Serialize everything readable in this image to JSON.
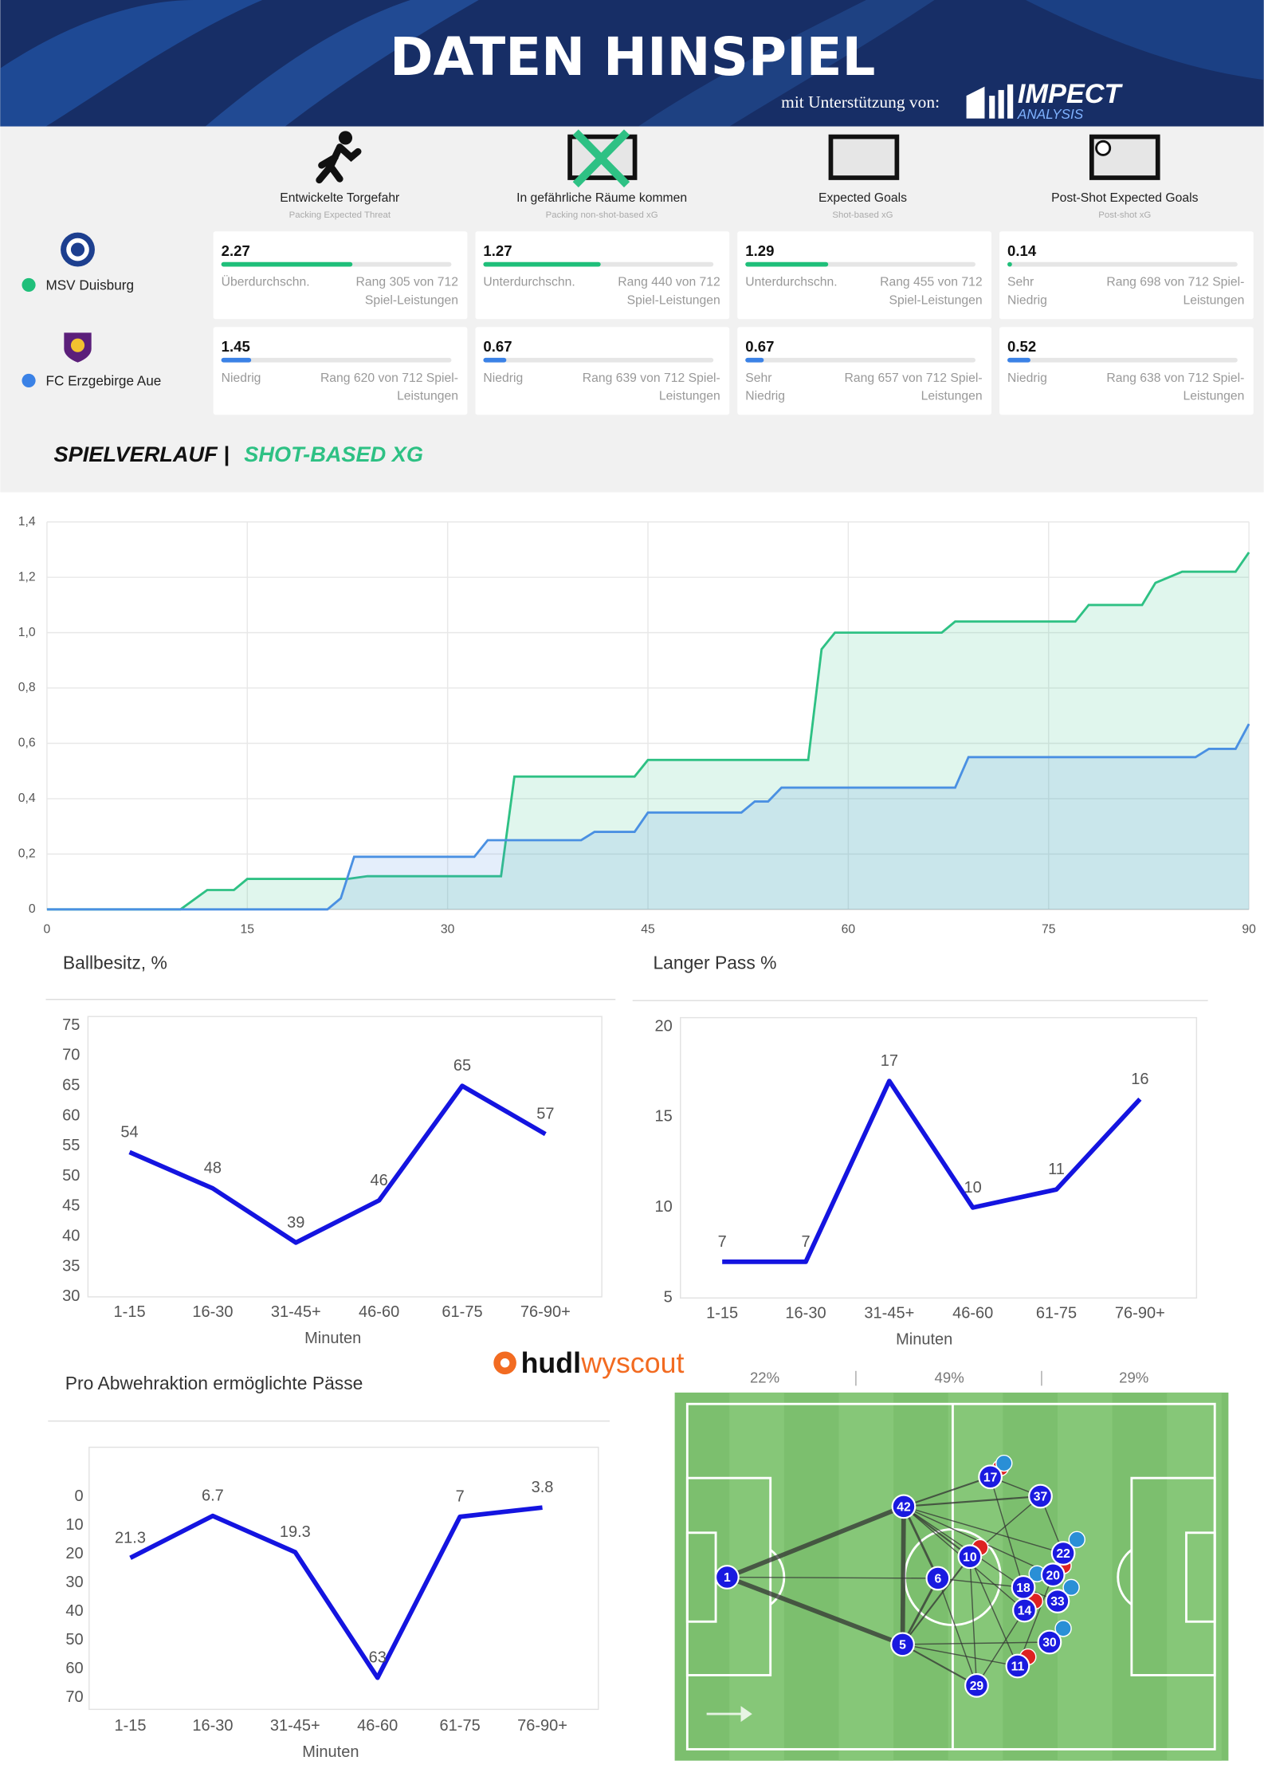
{
  "header": {
    "title": "DATEN HINSPIEL",
    "support": "mit Unterstützung von:",
    "sponsor": "IMPECT",
    "sponsor_sub": "ANALYSIS"
  },
  "metrics": {
    "columns": [
      {
        "title": "Entwickelte Torgefahr",
        "subtitle": "Packing Expected Threat"
      },
      {
        "title": "In gefährliche Räume kommen",
        "subtitle": "Packing non-shot-based xG"
      },
      {
        "title": "Expected Goals",
        "subtitle": "Shot-based xG"
      },
      {
        "title": "Post-Shot Expected Goals",
        "subtitle": "Post-shot xG"
      }
    ],
    "teams": [
      {
        "name": "MSV Duisburg",
        "color": "#1fbf7a",
        "cards": [
          {
            "value": 2.27,
            "bar": 0.57,
            "label": [
              "Überdurchschn."
            ],
            "rank": [
              "Rang 305 von 712",
              "Spiel-Leistungen"
            ]
          },
          {
            "value": 1.27,
            "bar": 0.51,
            "label": [
              "Unterdurchschn."
            ],
            "rank": [
              "Rang 440 von 712",
              "Spiel-Leistungen"
            ]
          },
          {
            "value": 1.29,
            "bar": 0.36,
            "label": [
              "Unterdurchschn."
            ],
            "rank": [
              "Rang 455 von 712",
              "Spiel-Leistungen"
            ]
          },
          {
            "value": 0.14,
            "bar": 0.02,
            "label": [
              "Sehr",
              "Niedrig"
            ],
            "rank": [
              "Rang 698 von 712 Spiel-",
              "Leistungen"
            ]
          }
        ]
      },
      {
        "name": "FC Erzgebirge Aue",
        "color": "#3b82e6",
        "cards": [
          {
            "value": 1.45,
            "bar": 0.13,
            "label": [
              "Niedrig"
            ],
            "rank": [
              "Rang 620 von 712 Spiel-",
              "Leistungen"
            ]
          },
          {
            "value": 0.67,
            "bar": 0.1,
            "label": [
              "Niedrig"
            ],
            "rank": [
              "Rang 639 von 712 Spiel-",
              "Leistungen"
            ]
          },
          {
            "value": 0.67,
            "bar": 0.08,
            "label": [
              "Sehr",
              "Niedrig"
            ],
            "rank": [
              "Rang 657 von 712 Spiel-",
              "Leistungen"
            ]
          },
          {
            "value": 0.52,
            "bar": 0.1,
            "label": [
              "Niedrig"
            ],
            "rank": [
              "Rang 638 von 712 Spiel-",
              "Leistungen"
            ]
          }
        ]
      }
    ]
  },
  "section": {
    "title": "SPIELVERLAUF |",
    "highlight": "SHOT-BASED XG"
  },
  "chart_data": [
    {
      "type": "area",
      "xlim": [
        0,
        90
      ],
      "xticks": [
        0,
        15,
        30,
        45,
        60,
        75,
        90
      ],
      "ylim": [
        0,
        1.4
      ],
      "yticks": [
        0,
        {
          "value": 0.2,
          "label": "0,2"
        },
        {
          "value": 0.4,
          "label": "0,4"
        },
        {
          "value": 0.6,
          "label": "0,6"
        },
        {
          "value": 0.8,
          "label": "0,8"
        },
        {
          "value": 1.0,
          "label": "1,0"
        },
        {
          "value": 1.2,
          "label": "1,2"
        },
        {
          "value": 1.4,
          "label": "1,4"
        }
      ],
      "grid": true,
      "series": [
        {
          "color": "#2ec184",
          "x": [
            0,
            10,
            12,
            14,
            15,
            22.5,
            24,
            34,
            35,
            44,
            45,
            57,
            58,
            59,
            67,
            68,
            77,
            78,
            82,
            83,
            85,
            89,
            90
          ],
          "values": [
            0,
            0,
            0.07,
            0.07,
            0.11,
            0.11,
            0.12,
            0.12,
            0.48,
            0.48,
            0.54,
            0.54,
            0.94,
            1.0,
            1.0,
            1.04,
            1.04,
            1.1,
            1.1,
            1.18,
            1.22,
            1.22,
            1.29
          ]
        },
        {
          "color": "#4a90e2",
          "x": [
            0,
            21,
            22,
            23,
            32,
            33,
            40,
            41,
            44,
            45,
            52,
            53,
            54,
            55,
            68,
            69,
            86,
            87,
            89,
            90
          ],
          "values": [
            0,
            0,
            0.04,
            0.19,
            0.19,
            0.25,
            0.25,
            0.28,
            0.28,
            0.35,
            0.35,
            0.39,
            0.39,
            0.44,
            0.44,
            0.55,
            0.55,
            0.58,
            0.58,
            0.67
          ]
        }
      ]
    },
    {
      "type": "line",
      "title": "Ballbesitz, %",
      "x_label": "Minuten",
      "categories": [
        "1-15",
        "16-30",
        "31-45+",
        "46-60",
        "61-75",
        "76-90+"
      ],
      "values": [
        54,
        48,
        39,
        46,
        65,
        57
      ],
      "color": "#1414e0",
      "ylim": [
        30,
        75
      ],
      "yticks": [
        30,
        35,
        40,
        45,
        50,
        55,
        60,
        65,
        70,
        75
      ],
      "grid": false
    },
    {
      "type": "line",
      "title": "Langer Pass %",
      "x_label": "Minuten",
      "categories": [
        "1-15",
        "16-30",
        "31-45+",
        "46-60",
        "61-75",
        "76-90+"
      ],
      "values": [
        7,
        7,
        17,
        10,
        11,
        16
      ],
      "color": "#1414e0",
      "ylim": [
        5,
        20
      ],
      "yticks": [
        5,
        10,
        15,
        20
      ],
      "grid": false
    },
    {
      "type": "line",
      "title": "Pro Abwehraktion ermöglichte Pässe",
      "x_label": "Minuten",
      "categories": [
        "1-15",
        "16-30",
        "31-45+",
        "46-60",
        "61-75",
        "76-90+"
      ],
      "values": [
        21.3,
        6.7,
        19.3,
        63,
        7,
        3.8
      ],
      "color": "#1414e0",
      "ylim": [
        74,
        -14
      ],
      "yticks": [
        0,
        10,
        20,
        30,
        40,
        50,
        60,
        70
      ],
      "grid": false
    }
  ],
  "source": {
    "brand": "hudl",
    "brand2": "wyscout"
  },
  "pitch": {
    "zones": [
      "22%",
      "49%",
      "29%"
    ],
    "nodes": [
      {
        "label": "1"
      },
      {
        "label": "42"
      },
      {
        "label": "5"
      },
      {
        "label": "6"
      },
      {
        "label": "10"
      },
      {
        "label": "17"
      },
      {
        "label": "37"
      },
      {
        "label": "22"
      },
      {
        "label": "20"
      },
      {
        "label": "18"
      },
      {
        "label": "14"
      },
      {
        "label": "33"
      },
      {
        "label": "30"
      },
      {
        "label": "11"
      },
      {
        "label": "29"
      }
    ]
  }
}
